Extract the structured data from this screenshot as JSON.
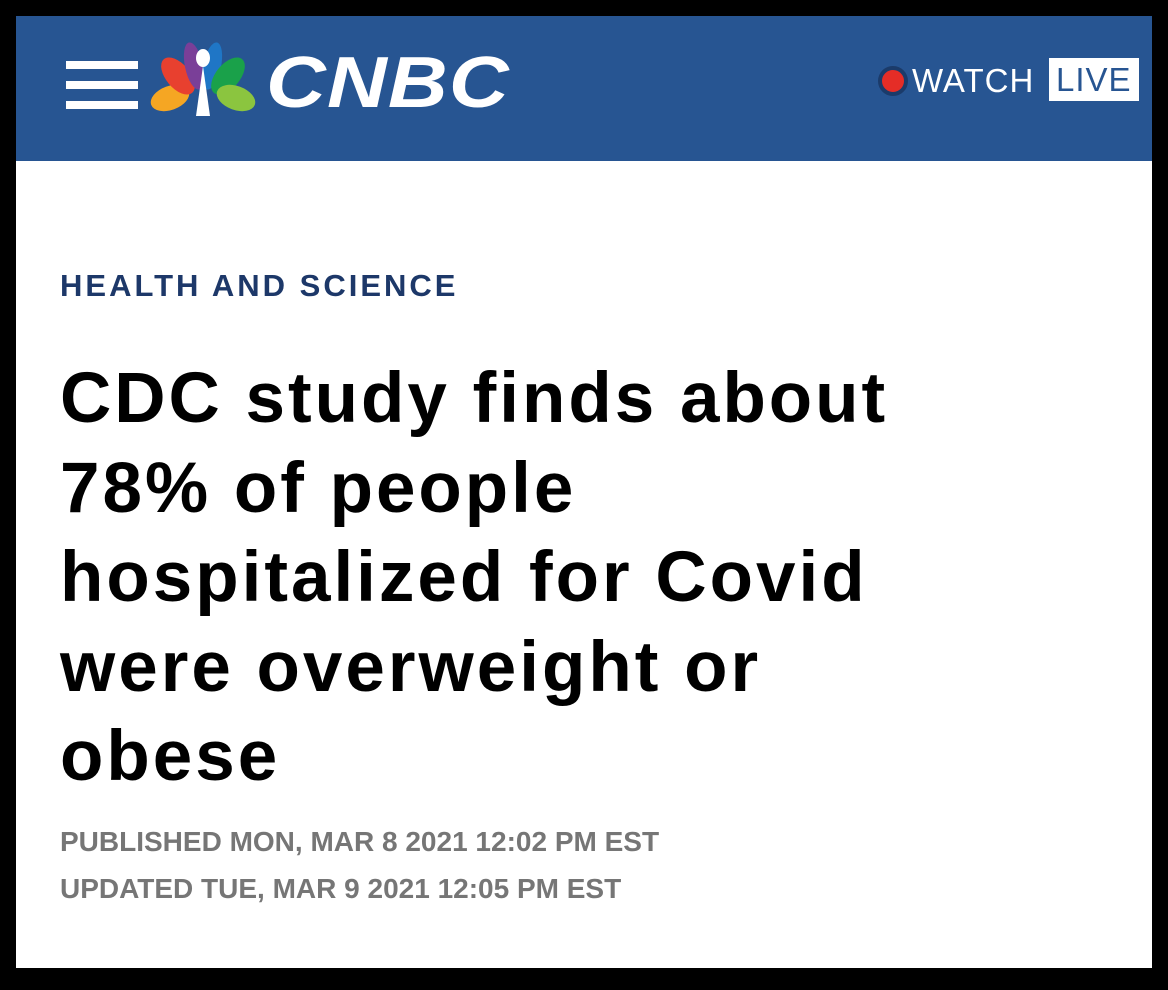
{
  "header": {
    "logo": "CNBC",
    "watch": "WATCH",
    "live": "LIVE"
  },
  "article": {
    "section": "HEALTH AND SCIENCE",
    "headline_lines": [
      "CDC study finds about",
      "78% of people",
      "hospitalized for Covid",
      "were overweight or",
      "obese"
    ],
    "published": "PUBLISHED MON, MAR 8 2021 12:02 PM EST",
    "updated": "UPDATED TUE, MAR 9 2021 12:05 PM EST"
  }
}
